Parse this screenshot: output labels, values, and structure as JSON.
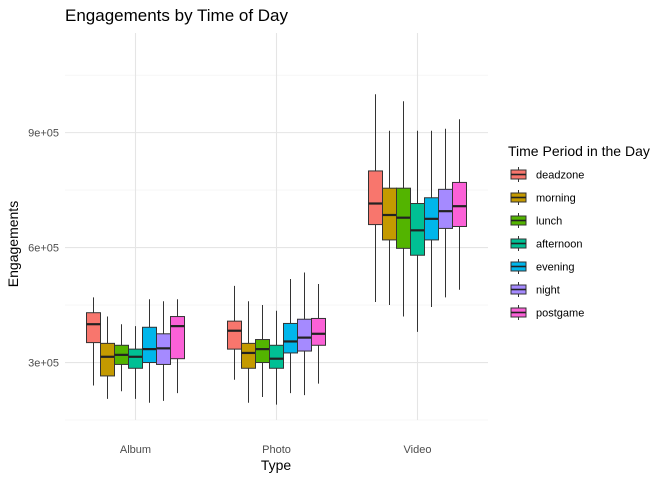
{
  "chart_data": {
    "type": "boxplot",
    "title": "Engagements by Time of Day",
    "xlabel": "Type",
    "ylabel": "Engagements",
    "categories": [
      "Album",
      "Photo",
      "Video"
    ],
    "y_ticks": [
      {
        "value": 300000,
        "label": "3e+05"
      },
      {
        "value": 600000,
        "label": "6e+05"
      },
      {
        "value": 900000,
        "label": "9e+05"
      }
    ],
    "ylim": [
      150000,
      1160000
    ],
    "grid": true,
    "legend": {
      "title": "Time Period in the Day",
      "position": "right"
    },
    "series": [
      {
        "name": "deadzone",
        "color": "#F8766D",
        "boxes": [
          {
            "min": 240000,
            "q1": 352000,
            "median": 400000,
            "q3": 430000,
            "max": 470000
          },
          {
            "min": 255000,
            "q1": 335000,
            "median": 383000,
            "q3": 408000,
            "max": 500000
          },
          {
            "min": 458000,
            "q1": 660000,
            "median": 715000,
            "q3": 800000,
            "max": 1000000
          }
        ]
      },
      {
        "name": "morning",
        "color": "#C49A00",
        "boxes": [
          {
            "min": 205000,
            "q1": 265000,
            "median": 315000,
            "q3": 350000,
            "max": 420000
          },
          {
            "min": 195000,
            "q1": 285000,
            "median": 325000,
            "q3": 350000,
            "max": 460000
          },
          {
            "min": 450000,
            "q1": 620000,
            "median": 685000,
            "q3": 755000,
            "max": 905000
          }
        ]
      },
      {
        "name": "lunch",
        "color": "#53B400",
        "boxes": [
          {
            "min": 225000,
            "q1": 295000,
            "median": 320000,
            "q3": 345000,
            "max": 400000
          },
          {
            "min": 210000,
            "q1": 300000,
            "median": 335000,
            "q3": 360000,
            "max": 450000
          },
          {
            "min": 420000,
            "q1": 598000,
            "median": 678000,
            "q3": 755000,
            "max": 982000
          }
        ]
      },
      {
        "name": "afternoon",
        "color": "#00C094",
        "boxes": [
          {
            "min": 205000,
            "q1": 285000,
            "median": 315000,
            "q3": 335000,
            "max": 395000
          },
          {
            "min": 190000,
            "q1": 285000,
            "median": 310000,
            "q3": 345000,
            "max": 435000
          },
          {
            "min": 380000,
            "q1": 580000,
            "median": 645000,
            "q3": 715000,
            "max": 905000
          }
        ]
      },
      {
        "name": "evening",
        "color": "#00B6EB",
        "boxes": [
          {
            "min": 195000,
            "q1": 300000,
            "median": 335000,
            "q3": 392000,
            "max": 465000
          },
          {
            "min": 220000,
            "q1": 325000,
            "median": 355000,
            "q3": 402000,
            "max": 518000
          },
          {
            "min": 445000,
            "q1": 620000,
            "median": 675000,
            "q3": 730000,
            "max": 905000
          }
        ]
      },
      {
        "name": "night",
        "color": "#A58AFF",
        "boxes": [
          {
            "min": 200000,
            "q1": 295000,
            "median": 337000,
            "q3": 375000,
            "max": 460000
          },
          {
            "min": 215000,
            "q1": 330000,
            "median": 365000,
            "q3": 413000,
            "max": 535000
          },
          {
            "min": 470000,
            "q1": 650000,
            "median": 695000,
            "q3": 752000,
            "max": 910000
          }
        ]
      },
      {
        "name": "postgame",
        "color": "#FB61D7",
        "boxes": [
          {
            "min": 220000,
            "q1": 310000,
            "median": 395000,
            "q3": 420000,
            "max": 465000
          },
          {
            "min": 245000,
            "q1": 345000,
            "median": 375000,
            "q3": 415000,
            "max": 505000
          },
          {
            "min": 490000,
            "q1": 655000,
            "median": 708000,
            "q3": 770000,
            "max": 935000
          }
        ]
      }
    ]
  }
}
